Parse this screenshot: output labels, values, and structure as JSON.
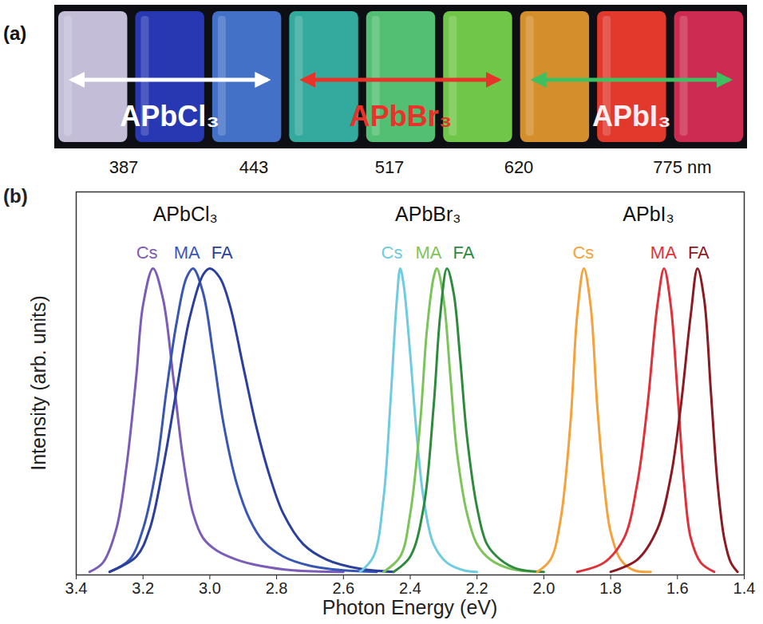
{
  "panel_a": {
    "letter": "(a)",
    "colors": [
      "#ddd6f2",
      "#2b3fc8",
      "#4a7fe0",
      "#38c0b0",
      "#5cd880",
      "#7ee050",
      "#f0a030",
      "#ff4030",
      "#e8305a"
    ],
    "labels": [
      "APbCl₃",
      "APbBr₃",
      "APbI₃"
    ],
    "wavelength_labels": [
      "387",
      "443",
      "517",
      "620",
      "775 nm"
    ]
  },
  "chart_data": {
    "type": "line",
    "letter": "(b)",
    "xlabel": "Photon Energy (eV)",
    "ylabel": "Intensity (arb. units)",
    "xlim": [
      3.4,
      1.4
    ],
    "xticks": [
      3.4,
      3.2,
      {
        "value": 3,
        "label": "3.0"
      },
      2.8,
      2.6,
      2.4,
      2.2,
      {
        "value": 2,
        "label": "2.0"
      },
      1.8,
      1.6,
      1.4
    ],
    "ylim": [
      0,
      1.25
    ],
    "tick_labels": "x",
    "groups": [
      {
        "name": "APbCl₃",
        "series": [
          {
            "name": "Cs",
            "color": "#7b5cb8",
            "x": [
              3.36,
              3.32,
              3.28,
              3.25,
              3.22,
              3.2,
              3.17,
              3.14,
              3.11,
              3.08,
              3.05,
              3.02,
              2.98,
              2.92,
              2.85,
              2.75,
              2.6
            ],
            "values": [
              0.01,
              0.04,
              0.15,
              0.35,
              0.65,
              0.88,
              1.0,
              0.9,
              0.65,
              0.38,
              0.2,
              0.12,
              0.08,
              0.05,
              0.03,
              0.015,
              0.01
            ]
          },
          {
            "name": "MA",
            "color": "#3a56b5",
            "x": [
              3.3,
              3.24,
              3.2,
              3.16,
              3.13,
              3.1,
              3.07,
              3.05,
              3.02,
              2.99,
              2.96,
              2.92,
              2.88,
              2.84,
              2.78,
              2.7,
              2.6,
              2.5
            ],
            "values": [
              0.01,
              0.05,
              0.15,
              0.35,
              0.6,
              0.82,
              0.97,
              1.0,
              0.92,
              0.72,
              0.5,
              0.3,
              0.18,
              0.11,
              0.06,
              0.03,
              0.015,
              0.01
            ]
          },
          {
            "name": "FA",
            "color": "#2a3f9e",
            "x": [
              3.3,
              3.22,
              3.18,
              3.14,
              3.1,
              3.06,
              3.02,
              3.0,
              2.97,
              2.94,
              2.9,
              2.86,
              2.82,
              2.78,
              2.72,
              2.65,
              2.55,
              2.45
            ],
            "values": [
              0.01,
              0.06,
              0.15,
              0.35,
              0.6,
              0.84,
              0.98,
              1.0,
              0.97,
              0.88,
              0.68,
              0.48,
              0.32,
              0.2,
              0.1,
              0.05,
              0.02,
              0.01
            ]
          }
        ]
      },
      {
        "name": "APbBr₃",
        "series": [
          {
            "name": "Cs",
            "color": "#6fcbe0",
            "x": [
              2.55,
              2.51,
              2.48,
              2.46,
              2.44,
              2.43,
              2.42,
              2.4,
              2.38,
              2.36,
              2.33,
              2.29,
              2.24,
              2.2
            ],
            "values": [
              0.01,
              0.06,
              0.25,
              0.55,
              0.9,
              1.0,
              0.95,
              0.72,
              0.45,
              0.25,
              0.1,
              0.04,
              0.015,
              0.01
            ]
          },
          {
            "name": "MA",
            "color": "#7cc45a",
            "x": [
              2.48,
              2.43,
              2.4,
              2.37,
              2.35,
              2.33,
              2.32,
              2.3,
              2.28,
              2.26,
              2.23,
              2.2,
              2.16,
              2.1,
              2.02
            ],
            "values": [
              0.01,
              0.06,
              0.2,
              0.5,
              0.8,
              0.97,
              1.0,
              0.9,
              0.65,
              0.4,
              0.2,
              0.1,
              0.05,
              0.02,
              0.01
            ]
          },
          {
            "name": "FA",
            "color": "#2e8b3e",
            "x": [
              2.45,
              2.4,
              2.36,
              2.33,
              2.31,
              2.29,
              2.27,
              2.25,
              2.23,
              2.2,
              2.17,
              2.13,
              2.08,
              2.0
            ],
            "values": [
              0.01,
              0.06,
              0.22,
              0.55,
              0.85,
              1.0,
              0.92,
              0.7,
              0.45,
              0.22,
              0.1,
              0.05,
              0.02,
              0.01
            ]
          }
        ]
      },
      {
        "name": "APbI₃",
        "series": [
          {
            "name": "Cs",
            "color": "#f5a23c",
            "x": [
              2.02,
              1.98,
              1.95,
              1.92,
              1.9,
              1.88,
              1.86,
              1.84,
              1.82,
              1.8,
              1.77,
              1.73,
              1.68
            ],
            "values": [
              0.01,
              0.05,
              0.18,
              0.5,
              0.85,
              1.0,
              0.88,
              0.55,
              0.3,
              0.14,
              0.05,
              0.015,
              0.01
            ]
          },
          {
            "name": "MA",
            "color": "#e0313a",
            "x": [
              1.9,
              1.82,
              1.76,
              1.72,
              1.69,
              1.66,
              1.64,
              1.62,
              1.6,
              1.58,
              1.56,
              1.53,
              1.49
            ],
            "values": [
              0.01,
              0.04,
              0.12,
              0.3,
              0.55,
              0.88,
              1.0,
              0.88,
              0.6,
              0.3,
              0.12,
              0.04,
              0.01
            ]
          },
          {
            "name": "FA",
            "color": "#8b1a22",
            "x": [
              1.8,
              1.72,
              1.66,
              1.62,
              1.59,
              1.56,
              1.54,
              1.52,
              1.5,
              1.48,
              1.46,
              1.44,
              1.42
            ],
            "values": [
              0.01,
              0.05,
              0.15,
              0.32,
              0.55,
              0.85,
              1.0,
              0.9,
              0.6,
              0.3,
              0.12,
              0.04,
              0.01
            ]
          }
        ]
      }
    ]
  }
}
